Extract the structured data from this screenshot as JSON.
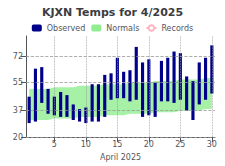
{
  "chart_data": {
    "type": "range_bar",
    "title": "KJXN Temps for 4/2025",
    "xlabel": "April 2025",
    "x": [
      1,
      2,
      3,
      4,
      5,
      6,
      7,
      8,
      9,
      10,
      11,
      12,
      13,
      14,
      15,
      16,
      17,
      18,
      19,
      20,
      21,
      22,
      23,
      24,
      25,
      26,
      27,
      28,
      29,
      30
    ],
    "xlim": [
      0.5,
      30.5
    ],
    "xticks": [
      5,
      10,
      15,
      20,
      25,
      30
    ],
    "ylim": [
      20,
      85
    ],
    "yticks": [
      20,
      37,
      55,
      72
    ],
    "grid": true,
    "legend": "top",
    "series": [
      {
        "name": "Observed",
        "type": "bar",
        "color": "#00008B",
        "low": [
          29,
          30,
          42,
          35,
          34,
          33,
          33,
          31,
          30,
          29,
          30,
          30,
          33,
          44,
          45,
          45,
          43,
          44,
          33,
          34,
          33,
          43,
          43,
          42,
          44,
          37,
          31,
          41,
          44,
          48
        ],
        "high": [
          46,
          64,
          65,
          51,
          46,
          49,
          47,
          41,
          38,
          39,
          54,
          54,
          60,
          61,
          71,
          62,
          63,
          78,
          68,
          70,
          55,
          69,
          71,
          75,
          74,
          59,
          56,
          68,
          71,
          79
        ]
      },
      {
        "name": "Normals",
        "type": "area",
        "color": "#90EE90",
        "low": [
          31,
          31,
          31,
          31,
          32,
          32,
          32,
          32,
          33,
          33,
          33,
          33,
          34,
          34,
          34,
          34,
          35,
          35,
          35,
          35,
          36,
          36,
          36,
          36,
          37,
          37,
          37,
          37,
          38,
          38
        ],
        "high": [
          51,
          51,
          51,
          51,
          52,
          52,
          52,
          52,
          53,
          53,
          53,
          53,
          54,
          54,
          54,
          54,
          55,
          55,
          55,
          55,
          56,
          56,
          56,
          56,
          57,
          57,
          57,
          57,
          58,
          58
        ]
      },
      {
        "name": "Records",
        "type": "line",
        "color": "#FFB6C1",
        "values": [
          null,
          null,
          null,
          null,
          null,
          null,
          null,
          null,
          null,
          null,
          null,
          null,
          null,
          null,
          null,
          null,
          null,
          null,
          null,
          null,
          null,
          null,
          null,
          null,
          null,
          null,
          null,
          null,
          null,
          null
        ]
      }
    ]
  }
}
